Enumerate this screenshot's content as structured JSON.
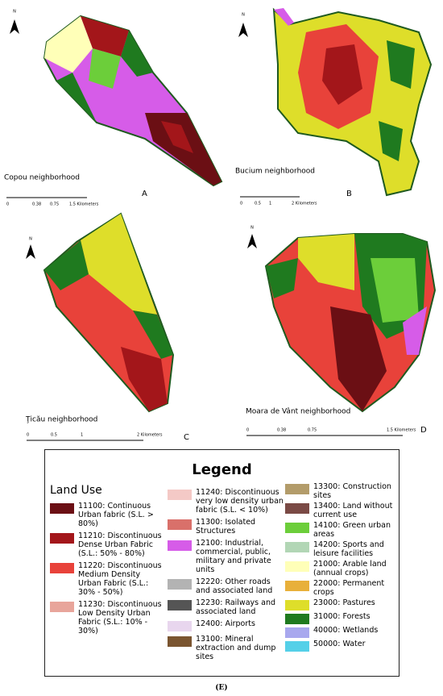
{
  "panels": [
    {
      "name": "Copou neighborhood",
      "letter": "A",
      "north": "N",
      "scale": [
        "0",
        "0.38",
        "0.75",
        "1.5 Kilometers"
      ]
    },
    {
      "name": "Bucium neighborhood",
      "letter": "B",
      "north": "N",
      "scale": [
        "0",
        "0.5",
        "1",
        "2 Kilometers"
      ]
    },
    {
      "name": "Ţicău neighborhood",
      "letter": "C",
      "north": "N",
      "scale": [
        "0",
        "0.5",
        "1",
        "2 Kilometers"
      ]
    },
    {
      "name": "Moara de Vânt neighborhood",
      "letter": "D",
      "north": "N",
      "scale": [
        "0",
        "0.38",
        "0.75",
        "1.5 Kilometers"
      ]
    }
  ],
  "legend": {
    "title": "Legend",
    "subtitle": "Land Use",
    "items": [
      {
        "label": "11100: Continuous Urban fabric (S.L. > 80%)",
        "color": "#6b0f14"
      },
      {
        "label": "11210: Discontinuous Dense Urban Fabric (S.L.: 50% - 80%)",
        "color": "#a3161a"
      },
      {
        "label": "11220: Discontinuous Medium Density Urban Fabric (S.L.: 30% - 50%)",
        "color": "#e8423a"
      },
      {
        "label": "11230: Discontinuous Low Density Urban Fabric (S.L.: 10% - 30%)",
        "color": "#e8a59b"
      },
      {
        "label": "11240: Discontinuous very low density urban fabric (S.L. < 10%)",
        "color": "#f4c9c6"
      },
      {
        "label": "11300: Isolated Structures",
        "color": "#d9706a"
      },
      {
        "label": "12100: Industrial, commercial, public, military and private units",
        "color": "#d65ce8"
      },
      {
        "label": "12220: Other roads and associated land",
        "color": "#b3b3b3"
      },
      {
        "label": "12230: Railways and associated land",
        "color": "#555555"
      },
      {
        "label": "12400: Airports",
        "color": "#e8d6ee"
      },
      {
        "label": "13100: Mineral extraction and dump sites",
        "color": "#7a5530"
      },
      {
        "label": "13300: Construction sites",
        "color": "#b39c6a"
      },
      {
        "label": "13400: Land without current use",
        "color": "#7a4a45"
      },
      {
        "label": "14100: Green urban areas",
        "color": "#6cce3a"
      },
      {
        "label": "14200: Sports and leisure facilities",
        "color": "#b2d6b5"
      },
      {
        "label": "21000: Arable land (annual crops)",
        "color": "#ffffb8"
      },
      {
        "label": "22000: Permanent crops",
        "color": "#e8b03a"
      },
      {
        "label": "23000: Pastures",
        "color": "#dede2a"
      },
      {
        "label": "31000: Forests",
        "color": "#1f7a1f"
      },
      {
        "label": "40000: Wetlands",
        "color": "#a8a8ee"
      },
      {
        "label": "50000: Water",
        "color": "#55d0e8"
      }
    ]
  },
  "caption": "(E)"
}
